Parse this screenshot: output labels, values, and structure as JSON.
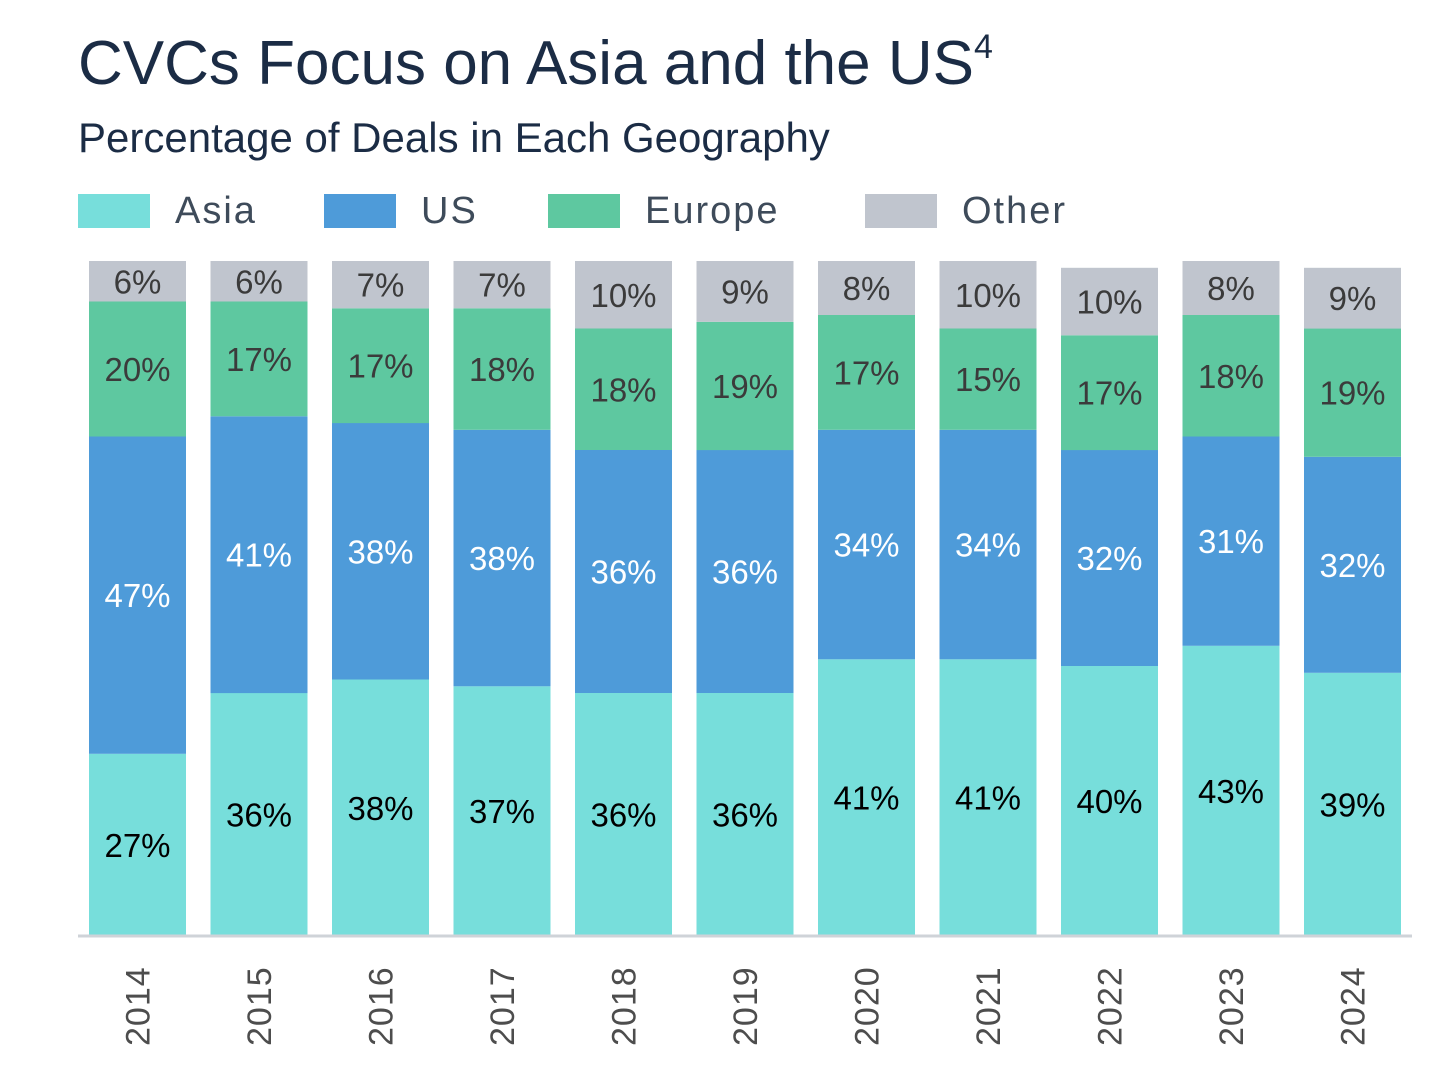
{
  "chart_data": {
    "type": "bar",
    "stacked": true,
    "title": "CVCs Focus on Asia and the US",
    "title_superscript": "4",
    "subtitle": "Percentage of Deals in Each Geography",
    "categories": [
      "2014",
      "2015",
      "2016",
      "2017",
      "2018",
      "2019",
      "2020",
      "2021",
      "2022",
      "2023",
      "2024"
    ],
    "series": [
      {
        "name": "Asia",
        "color": "#77dedb",
        "label_color": "#000000",
        "values": [
          27,
          36,
          38,
          37,
          36,
          36,
          41,
          41,
          40,
          43,
          39
        ]
      },
      {
        "name": "US",
        "color": "#4e9bd9",
        "label_color": "#ffffff",
        "values": [
          47,
          41,
          38,
          38,
          36,
          36,
          34,
          34,
          32,
          31,
          32
        ]
      },
      {
        "name": "Europe",
        "color": "#5ec8a0",
        "label_color": "#3b3b3b",
        "values": [
          20,
          17,
          17,
          18,
          18,
          19,
          17,
          15,
          17,
          18,
          19
        ]
      },
      {
        "name": "Other",
        "color": "#c0c5ce",
        "label_color": "#3b3b3b",
        "values": [
          6,
          6,
          7,
          7,
          10,
          9,
          8,
          10,
          10,
          8,
          9
        ]
      }
    ],
    "value_suffix": "%",
    "xlabel": "",
    "ylabel": "",
    "ylim": [
      0,
      100
    ],
    "legend_position": "top",
    "grid": false,
    "x_tick_rotation": "vertical"
  }
}
